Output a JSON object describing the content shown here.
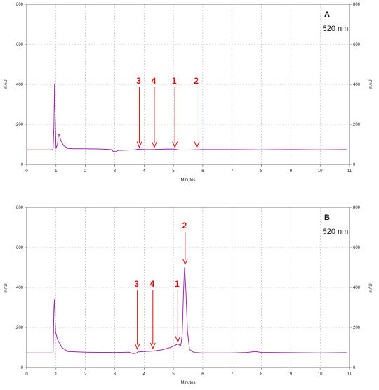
{
  "chart_data": [
    {
      "type": "line",
      "panel_label": "A",
      "wavelength": "520 nm",
      "xlabel": "Minutes",
      "ylabel_left": "mAU",
      "ylabel_right": "mAU",
      "xlim": [
        0,
        11
      ],
      "ylim": [
        0,
        800
      ],
      "x_ticks": [
        "0",
        "1",
        "2",
        "3",
        "4",
        "5",
        "6",
        "7",
        "8",
        "9",
        "10",
        "11"
      ],
      "y_ticks": [
        "0",
        "200",
        "400",
        "600",
        "800"
      ],
      "grid": true,
      "series": [
        {
          "color": "#9a2aa8",
          "points": [
            [
              0,
              73
            ],
            [
              0.85,
              73
            ],
            [
              0.9,
              76
            ],
            [
              0.93,
              200
            ],
            [
              0.95,
              400
            ],
            [
              0.97,
              230
            ],
            [
              1.0,
              80
            ],
            [
              1.05,
              100
            ],
            [
              1.08,
              148
            ],
            [
              1.11,
              150
            ],
            [
              1.15,
              125
            ],
            [
              1.25,
              95
            ],
            [
              1.4,
              80
            ],
            [
              1.6,
              78
            ],
            [
              2.0,
              78
            ],
            [
              2.5,
              77
            ],
            [
              2.9,
              74
            ],
            [
              2.95,
              64
            ],
            [
              3.05,
              64
            ],
            [
              3.1,
              70
            ],
            [
              3.4,
              71
            ],
            [
              3.7,
              73
            ],
            [
              3.8,
              76
            ],
            [
              4.0,
              74
            ],
            [
              4.3,
              74
            ],
            [
              4.8,
              77
            ],
            [
              5.0,
              76
            ],
            [
              5.2,
              72
            ],
            [
              5.5,
              72
            ],
            [
              6.0,
              74
            ],
            [
              7.0,
              74
            ],
            [
              8.0,
              73
            ],
            [
              9.0,
              74
            ],
            [
              10.0,
              73
            ],
            [
              10.9,
              74
            ]
          ]
        }
      ],
      "annotations": [
        {
          "label": "3",
          "x": 3.84,
          "y": 75
        },
        {
          "label": "4",
          "x": 4.35,
          "y": 75
        },
        {
          "label": "1",
          "x": 5.05,
          "y": 75
        },
        {
          "label": "2",
          "x": 5.8,
          "y": 75
        }
      ]
    },
    {
      "type": "line",
      "panel_label": "B",
      "wavelength": "520 nm",
      "xlabel": "Minutes",
      "ylabel_left": "mAU",
      "ylabel_right": "mAU",
      "xlim": [
        0,
        11
      ],
      "ylim": [
        0,
        800
      ],
      "x_ticks": [
        "0",
        "1",
        "2",
        "3",
        "4",
        "5",
        "6",
        "7",
        "8",
        "9",
        "10",
        "11"
      ],
      "y_ticks": [
        "0",
        "200",
        "400",
        "600",
        "800"
      ],
      "grid": true,
      "series": [
        {
          "color": "#9a2aa8",
          "points": [
            [
              0,
              73
            ],
            [
              0.9,
              73
            ],
            [
              0.93,
              300
            ],
            [
              0.95,
              340
            ],
            [
              0.98,
              180
            ],
            [
              1.05,
              140
            ],
            [
              1.2,
              100
            ],
            [
              1.4,
              80
            ],
            [
              2.0,
              76
            ],
            [
              3.0,
              75
            ],
            [
              3.5,
              76
            ],
            [
              3.6,
              70
            ],
            [
              3.7,
              70
            ],
            [
              3.8,
              78
            ],
            [
              4.0,
              80
            ],
            [
              4.3,
              82
            ],
            [
              4.6,
              88
            ],
            [
              4.9,
              100
            ],
            [
              5.05,
              110
            ],
            [
              5.15,
              118
            ],
            [
              5.25,
              108
            ],
            [
              5.3,
              160
            ],
            [
              5.35,
              400
            ],
            [
              5.38,
              500
            ],
            [
              5.42,
              400
            ],
            [
              5.48,
              180
            ],
            [
              5.55,
              90
            ],
            [
              5.7,
              75
            ],
            [
              6.0,
              73
            ],
            [
              7.0,
              73
            ],
            [
              7.5,
              75
            ],
            [
              7.8,
              80
            ],
            [
              8.0,
              75
            ],
            [
              9.0,
              74
            ],
            [
              10.0,
              73
            ],
            [
              10.9,
              74
            ]
          ]
        }
      ],
      "annotations": [
        {
          "label": "3",
          "x": 3.77,
          "y": 82
        },
        {
          "label": "4",
          "x": 4.3,
          "y": 85
        },
        {
          "label": "1",
          "x": 5.15,
          "y": 118
        },
        {
          "label": "2",
          "x": 5.4,
          "y": 505
        }
      ]
    }
  ],
  "colors": {
    "trace": "#9a2aa8",
    "annotation": "#cc1010",
    "grid": "#a0a0a0"
  }
}
